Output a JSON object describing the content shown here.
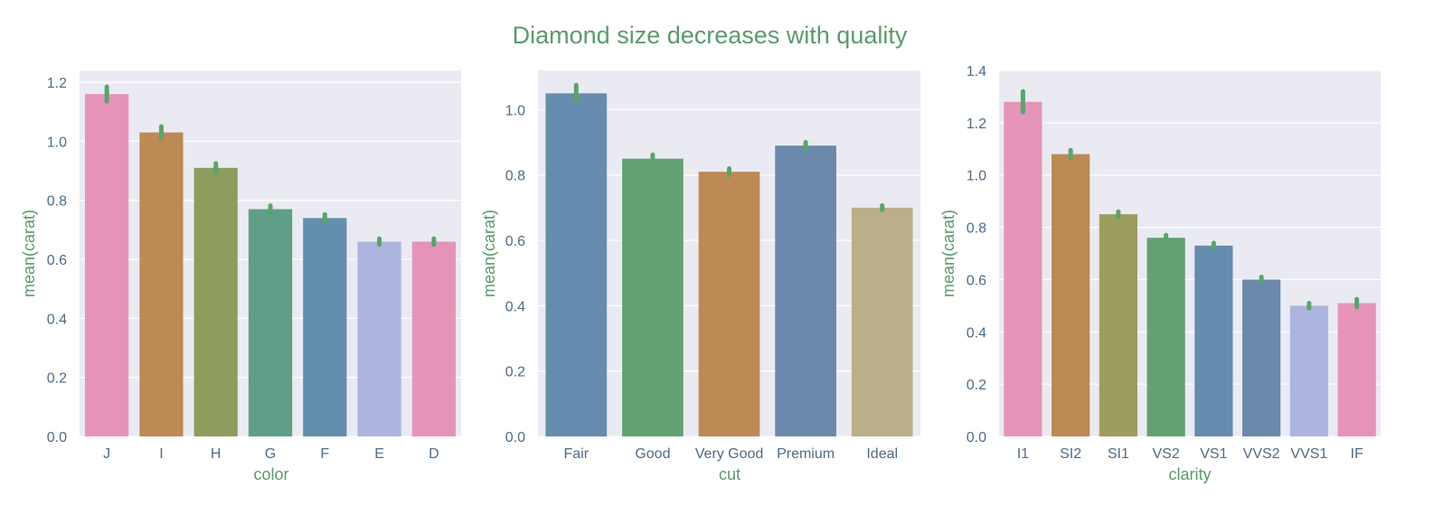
{
  "title": "Diamond size decreases with quality",
  "colors": {
    "title": "#5a9a6e",
    "axis_label": "#5a9a6e",
    "tick_label": "#4f6b86",
    "axes_background": "#eaeaf2",
    "grid": "#ffffff",
    "error_bar": "#5aa469"
  },
  "chart_data": [
    {
      "type": "bar",
      "title": "",
      "xlabel": "color",
      "ylabel": "mean(carat)",
      "categories": [
        "J",
        "I",
        "H",
        "G",
        "F",
        "E",
        "D"
      ],
      "values": [
        1.16,
        1.03,
        0.91,
        0.77,
        0.74,
        0.66,
        0.66
      ],
      "error": [
        0.025,
        0.02,
        0.015,
        0.012,
        0.012,
        0.01,
        0.01
      ],
      "bar_colors": [
        "#e594b8",
        "#bd8a55",
        "#8c9d5e",
        "#5f9e87",
        "#648ead",
        "#adb4e0",
        "#e594b8"
      ],
      "ylim": [
        0,
        1.24
      ],
      "yticks": [
        "0.0",
        "0.2",
        "0.4",
        "0.6",
        "0.8",
        "1.0",
        "1.2"
      ],
      "grid": true
    },
    {
      "type": "bar",
      "title": "",
      "xlabel": "cut",
      "ylabel": "mean(carat)",
      "categories": [
        "Fair",
        "Good",
        "Very Good",
        "Premium",
        "Ideal"
      ],
      "values": [
        1.05,
        0.85,
        0.81,
        0.89,
        0.7
      ],
      "error": [
        0.025,
        0.012,
        0.01,
        0.01,
        0.007
      ],
      "bar_colors": [
        "#668caf",
        "#64a172",
        "#bd8a55",
        "#6c88ac",
        "#baaf89"
      ],
      "ylim": [
        0,
        1.12
      ],
      "yticks": [
        "0.0",
        "0.2",
        "0.4",
        "0.6",
        "0.8",
        "1.0"
      ],
      "grid": true
    },
    {
      "type": "bar",
      "title": "",
      "xlabel": "clarity",
      "ylabel": "mean(carat)",
      "categories": [
        "I1",
        "SI2",
        "SI1",
        "VS2",
        "VS1",
        "VVS2",
        "VVS1",
        "IF"
      ],
      "values": [
        1.28,
        1.08,
        0.85,
        0.76,
        0.73,
        0.6,
        0.5,
        0.51
      ],
      "error": [
        0.04,
        0.015,
        0.01,
        0.01,
        0.01,
        0.01,
        0.01,
        0.015
      ],
      "bar_colors": [
        "#e594b8",
        "#bd8a55",
        "#9e9d60",
        "#64a172",
        "#668caf",
        "#6c88ac",
        "#adb4e0",
        "#e594b8"
      ],
      "ylim": [
        0,
        1.4
      ],
      "yticks": [
        "0.0",
        "0.2",
        "0.4",
        "0.6",
        "0.8",
        "1.0",
        "1.2",
        "1.4"
      ],
      "grid": true
    }
  ]
}
